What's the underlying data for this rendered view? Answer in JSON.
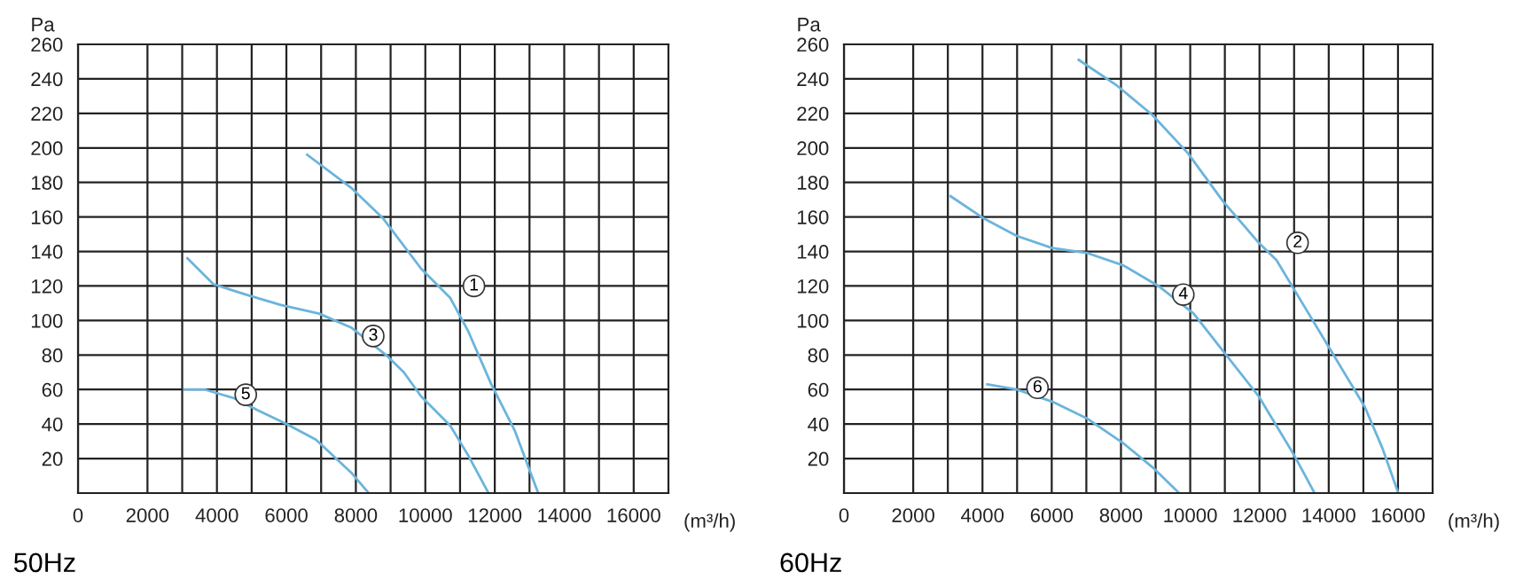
{
  "chart_data": [
    {
      "type": "line",
      "title": "50Hz",
      "xlabel": "(m³/h)",
      "ylabel": "Pa",
      "xlim": [
        0,
        17000
      ],
      "ylim": [
        0,
        260
      ],
      "xticks": [
        0,
        2000,
        {
          "value": 3000,
          "label": null
        },
        4000,
        {
          "value": 5000,
          "label": null
        },
        6000,
        {
          "value": 7000,
          "label": null
        },
        8000,
        {
          "value": 9000,
          "label": null
        },
        10000,
        {
          "value": 11000,
          "label": null
        },
        12000,
        {
          "value": 13000,
          "label": null
        },
        14000,
        {
          "value": 15000,
          "label": null
        },
        16000
      ],
      "yticks": [
        {
          "value": 0,
          "label": null
        },
        20,
        40,
        60,
        80,
        100,
        120,
        140,
        160,
        180,
        200,
        220,
        240,
        260
      ],
      "grid": true,
      "marker": "none",
      "line_style": "solid",
      "series": [
        {
          "color": "#6ab4dc",
          "x": [
            6600,
            7860,
            8790,
            9880,
            10720,
            11230,
            11900,
            12580,
            13250
          ],
          "values": [
            196,
            177,
            159,
            130,
            113,
            94,
            63,
            36,
            0
          ]
        },
        {
          "color": "#6ab4dc",
          "x": [
            3150,
            3900,
            4830,
            5840,
            6940,
            7860,
            8870,
            9380,
            9880,
            10720,
            11230,
            11820
          ],
          "values": [
            136,
            121,
            115,
            109,
            104,
            96,
            80,
            70,
            56,
            39,
            22,
            0
          ]
        },
        {
          "color": "#6ab4dc",
          "x": [
            3060,
            3650,
            4490,
            5170,
            6010,
            6850,
            7860,
            8370
          ],
          "values": [
            60,
            60,
            55,
            48,
            40,
            31,
            12,
            0
          ]
        }
      ],
      "annotations": [
        {
          "text": "1",
          "x": 11400,
          "y": 120
        },
        {
          "text": "3",
          "x": 8500,
          "y": 91
        },
        {
          "text": "5",
          "x": 4830,
          "y": 57
        }
      ]
    },
    {
      "type": "line",
      "title": "60Hz",
      "xlabel": "(m³/h)",
      "ylabel": "Pa",
      "xlim": [
        0,
        17000
      ],
      "ylim": [
        0,
        260
      ],
      "xticks": [
        0,
        2000,
        {
          "value": 3000,
          "label": null
        },
        4000,
        {
          "value": 5000,
          "label": null
        },
        6000,
        {
          "value": 7000,
          "label": null
        },
        8000,
        {
          "value": 9000,
          "label": null
        },
        10000,
        {
          "value": 11000,
          "label": null
        },
        12000,
        {
          "value": 13000,
          "label": null
        },
        14000,
        {
          "value": 15000,
          "label": null
        },
        16000
      ],
      "yticks": [
        {
          "value": 0,
          "label": null
        },
        20,
        40,
        60,
        80,
        100,
        120,
        140,
        160,
        180,
        200,
        220,
        240,
        260
      ],
      "grid": true,
      "marker": "none",
      "line_style": "solid",
      "series": [
        {
          "color": "#6ab4dc",
          "x": [
            6780,
            7890,
            8910,
            9930,
            10950,
            11980,
            12490,
            13000,
            14020,
            15040,
            15550,
            16010
          ],
          "values": [
            251,
            236,
            219,
            197,
            169,
            145,
            135,
            118,
            84,
            50,
            26,
            0
          ]
        },
        {
          "color": "#6ab4dc",
          "x": [
            3080,
            4050,
            4990,
            6010,
            7040,
            8060,
            9080,
            10100,
            11040,
            11980,
            13000,
            13590
          ],
          "values": [
            172,
            159,
            149,
            142,
            139,
            132,
            120,
            104,
            80,
            56,
            22,
            0
          ]
        },
        {
          "color": "#6ab4dc",
          "x": [
            4140,
            4990,
            6010,
            7040,
            8060,
            8910,
            9680
          ],
          "values": [
            63,
            60,
            53,
            43,
            29,
            15,
            0
          ]
        }
      ],
      "annotations": [
        {
          "text": "2",
          "x": 13100,
          "y": 145
        },
        {
          "text": "4",
          "x": 9800,
          "y": 115
        },
        {
          "text": "6",
          "x": 5590,
          "y": 61
        }
      ]
    }
  ]
}
